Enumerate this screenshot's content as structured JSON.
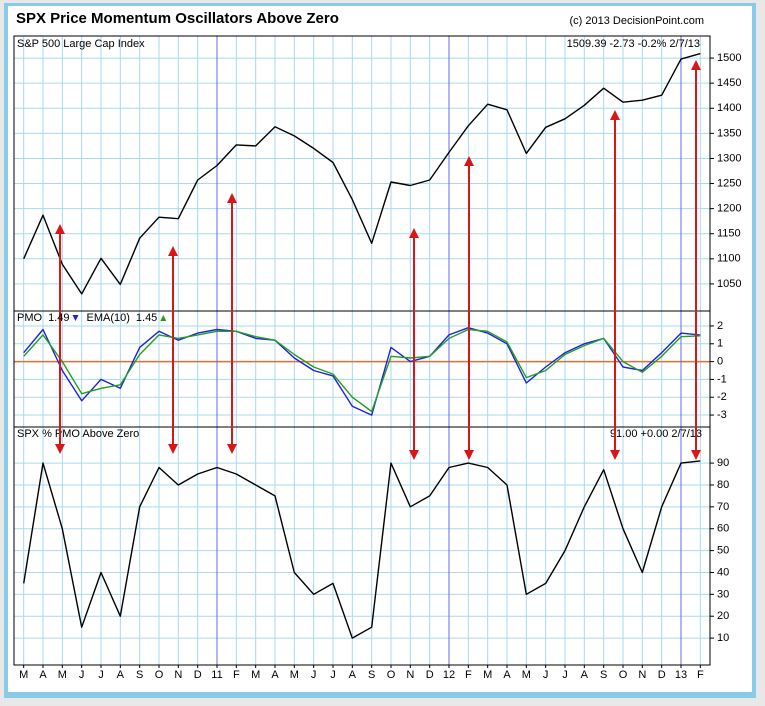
{
  "chart_data": [
    {
      "type": "line",
      "title": "SPX Price Momentum Oscillators Above Zero",
      "source": "(c) 2013 DecisionPoint.com",
      "label": "S&P 500 Large Cap Index",
      "last_value_label": "1509.39  -2.73  -0.2%  2/7/13",
      "color": "#000000",
      "values": [
        1100,
        1187,
        1089,
        1030,
        1101,
        1049,
        1141,
        1183,
        1180,
        1257,
        1286,
        1327,
        1325,
        1363,
        1345,
        1320,
        1292,
        1218,
        1131,
        1253,
        1246,
        1257,
        1312,
        1365,
        1408,
        1397,
        1310,
        1362,
        1379,
        1406,
        1440,
        1412,
        1416,
        1426,
        1498,
        1509
      ],
      "ylim": [
        996,
        1544
      ],
      "yticks": [
        1050,
        1100,
        1150,
        1200,
        1250,
        1300,
        1350,
        1400,
        1450,
        1500
      ],
      "grid": true
    },
    {
      "type": "line",
      "series": [
        {
          "name": "PMO",
          "last": 1.49,
          "color": "#2020e0",
          "values": [
            0.5,
            1.8,
            -0.5,
            -2.2,
            -1.0,
            -1.5,
            0.8,
            1.7,
            1.2,
            1.6,
            1.8,
            1.7,
            1.3,
            1.2,
            0.2,
            -0.5,
            -0.8,
            -2.5,
            -3.0,
            0.8,
            0.0,
            0.3,
            1.5,
            1.9,
            1.6,
            1.0,
            -1.2,
            -0.3,
            0.5,
            1.0,
            1.3,
            -0.3,
            -0.5,
            0.5,
            1.6,
            1.49
          ]
        },
        {
          "name": "EMA(10)",
          "last": 1.45,
          "color": "#20a020",
          "values": [
            0.3,
            1.5,
            0.0,
            -1.8,
            -1.5,
            -1.3,
            0.4,
            1.5,
            1.3,
            1.5,
            1.7,
            1.7,
            1.4,
            1.2,
            0.4,
            -0.3,
            -0.7,
            -2.0,
            -2.8,
            0.3,
            0.2,
            0.3,
            1.3,
            1.8,
            1.7,
            1.1,
            -0.9,
            -0.5,
            0.4,
            0.9,
            1.3,
            0.0,
            -0.6,
            0.3,
            1.4,
            1.45
          ]
        }
      ],
      "zero_line_color": "#e07030",
      "ylim": [
        -3.67,
        2.84
      ],
      "yticks": [
        -3,
        -2,
        -1,
        0,
        1,
        2
      ],
      "grid": true
    },
    {
      "type": "line",
      "label": "SPX % PMO Above Zero",
      "last_value_label": "91.00  +0.00  2/7/13",
      "color": "#000000",
      "categories": [
        "M",
        "A",
        "M",
        "J",
        "J",
        "A",
        "S",
        "O",
        "N",
        "D",
        "11",
        "F",
        "M",
        "A",
        "M",
        "J",
        "J",
        "A",
        "S",
        "O",
        "N",
        "D",
        "12",
        "F",
        "M",
        "A",
        "M",
        "J",
        "J",
        "A",
        "S",
        "O",
        "N",
        "D",
        "13",
        "F"
      ],
      "values": [
        35,
        90,
        60,
        15,
        40,
        20,
        70,
        88,
        80,
        85,
        88,
        85,
        80,
        75,
        40,
        30,
        35,
        10,
        15,
        90,
        70,
        75,
        88,
        90,
        88,
        80,
        30,
        35,
        50,
        70,
        87,
        60,
        40,
        70,
        90,
        91
      ],
      "ylim": [
        -2.3,
        106.5
      ],
      "yticks": [
        10,
        20,
        30,
        40,
        50,
        60,
        70,
        80,
        90
      ],
      "grid": true
    }
  ]
}
